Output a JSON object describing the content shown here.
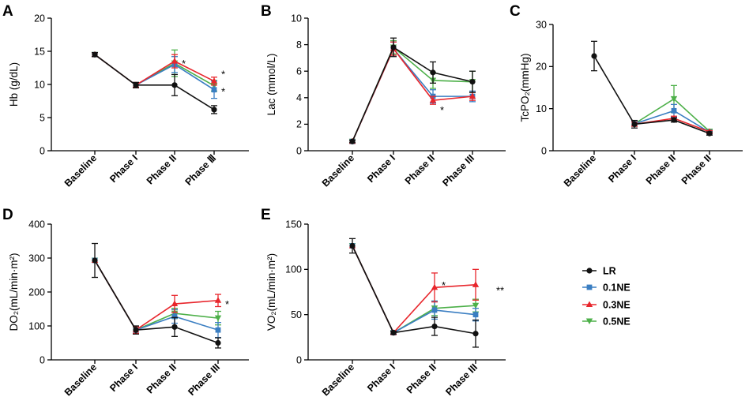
{
  "colors": {
    "LR": "#111111",
    "0.1NE": "#3a7ec2",
    "0.3NE": "#e8262c",
    "0.5NE": "#4db049"
  },
  "legend": {
    "entries": [
      {
        "label": "LR",
        "key": "LR",
        "marker": "circle"
      },
      {
        "label": "0.1NE",
        "key": "0.1NE",
        "marker": "square"
      },
      {
        "label": "0.3NE",
        "key": "0.3NE",
        "marker": "triangle-up"
      },
      {
        "label": "0.5NE",
        "key": "0.5NE",
        "marker": "triangle-down"
      }
    ]
  },
  "chart_data": [
    {
      "panel": "A",
      "type": "line",
      "ylabel": "Hb (g/dL)",
      "ylim": [
        0,
        20
      ],
      "yticks": [
        0,
        5,
        10,
        15,
        20
      ],
      "categories": [
        "Baseline",
        "Phase I",
        "Phase II",
        "Phase Ⅲ"
      ],
      "series": [
        {
          "name": "LR",
          "values": [
            14.5,
            9.9,
            9.9,
            6.2
          ],
          "errors": [
            0.3,
            0.4,
            1.6,
            0.6
          ]
        },
        {
          "name": "0.1NE",
          "values": [
            14.5,
            9.9,
            13.0,
            9.2
          ],
          "errors": [
            0.3,
            0.4,
            1.2,
            1.3
          ]
        },
        {
          "name": "0.3NE",
          "values": [
            14.5,
            9.9,
            13.5,
            10.5
          ],
          "errors": [
            0.3,
            0.4,
            1.0,
            0.6
          ]
        },
        {
          "name": "0.5NE",
          "values": [
            14.5,
            9.9,
            13.2,
            9.8
          ],
          "errors": [
            0.3,
            0.4,
            2.0,
            0.8
          ]
        }
      ],
      "annotations": [
        {
          "text": "*",
          "category": "Phase II",
          "y": 13.2
        },
        {
          "text": "*",
          "category": "Phase Ⅲ",
          "y": 11.6
        },
        {
          "text": "*",
          "category": "Phase Ⅲ",
          "y": 9.0
        }
      ]
    },
    {
      "panel": "B",
      "type": "line",
      "ylabel": "Lac (mmol/L)",
      "ylim": [
        0,
        10
      ],
      "yticks": [
        0,
        2,
        4,
        6,
        8,
        10
      ],
      "categories": [
        "Baseline",
        "Phase I",
        "Phase II",
        "Phase III"
      ],
      "series": [
        {
          "name": "LR",
          "values": [
            0.7,
            7.8,
            5.9,
            5.2
          ],
          "errors": [
            0.1,
            0.7,
            0.8,
            0.8
          ]
        },
        {
          "name": "0.1NE",
          "values": [
            0.7,
            7.7,
            4.1,
            4.1
          ],
          "errors": [
            0.1,
            0.5,
            0.5,
            0.4
          ]
        },
        {
          "name": "0.3NE",
          "values": [
            0.7,
            7.7,
            3.8,
            4.1
          ],
          "errors": [
            0.1,
            0.5,
            0.3,
            0.3
          ]
        },
        {
          "name": "0.5NE",
          "values": [
            0.7,
            7.8,
            5.3,
            5.2
          ],
          "errors": [
            0.1,
            0.5,
            0.6,
            0.8
          ]
        }
      ],
      "annotations": [
        {
          "text": "*",
          "category": "Phase II",
          "y": 3.1
        }
      ]
    },
    {
      "panel": "C",
      "type": "line",
      "ylabel": "TcPO₂(mmHg)",
      "ylim": [
        0,
        30
      ],
      "yticks": [
        0,
        10,
        20,
        30
      ],
      "categories": [
        "Baseline",
        "Phase I",
        "Phase II",
        "Phase II"
      ],
      "series": [
        {
          "name": "LR",
          "values": [
            22.5,
            6.3,
            7.3,
            4.1
          ],
          "errors": [
            3.5,
            0.9,
            0.5,
            0.4
          ]
        },
        {
          "name": "0.1NE",
          "values": [
            null,
            6.4,
            9.5,
            4.4
          ],
          "errors": [
            0,
            0.5,
            1.5,
            0.4
          ]
        },
        {
          "name": "0.3NE",
          "values": [
            null,
            6.3,
            7.7,
            4.5
          ],
          "errors": [
            0,
            0.5,
            0.5,
            0.3
          ]
        },
        {
          "name": "0.5NE",
          "values": [
            null,
            6.4,
            12.3,
            4.6
          ],
          "errors": [
            0,
            0.5,
            3.2,
            0.5
          ]
        }
      ],
      "annotations": []
    },
    {
      "panel": "D",
      "type": "line",
      "ylabel": "DO₂(mL/min·m²)",
      "ylim": [
        0,
        400
      ],
      "yticks": [
        0,
        100,
        200,
        300,
        400
      ],
      "categories": [
        "Baseline",
        "Phase I",
        "Phase II",
        "Phase III"
      ],
      "series": [
        {
          "name": "LR",
          "values": [
            293,
            88,
            97,
            50
          ],
          "errors": [
            50,
            12,
            28,
            15
          ]
        },
        {
          "name": "0.1NE",
          "values": [
            293,
            88,
            128,
            88
          ],
          "errors": [
            0,
            10,
            20,
            22
          ]
        },
        {
          "name": "0.3NE",
          "values": [
            293,
            88,
            165,
            175
          ],
          "errors": [
            0,
            10,
            25,
            18
          ]
        },
        {
          "name": "0.5NE",
          "values": [
            293,
            88,
            137,
            123
          ],
          "errors": [
            0,
            10,
            15,
            20
          ]
        }
      ],
      "annotations": [
        {
          "text": "*",
          "category": "Phase III",
          "y": 165
        }
      ]
    },
    {
      "panel": "E",
      "type": "line",
      "ylabel": "VO₂(mL/min·m²)",
      "ylim": [
        0,
        150
      ],
      "yticks": [
        0,
        50,
        100,
        150
      ],
      "categories": [
        "Baseline",
        "Phase I",
        "Phase II",
        "Phase III"
      ],
      "series": [
        {
          "name": "LR",
          "values": [
            126,
            30,
            37,
            29
          ],
          "errors": [
            8,
            1.5,
            10,
            15
          ]
        },
        {
          "name": "0.1NE",
          "values": [
            126,
            30,
            55,
            50
          ],
          "errors": [
            0,
            1.5,
            10,
            7
          ]
        },
        {
          "name": "0.3NE",
          "values": [
            126,
            30,
            80,
            83
          ],
          "errors": [
            0,
            1.5,
            16,
            17
          ]
        },
        {
          "name": "0.5NE",
          "values": [
            126,
            30,
            57,
            60
          ],
          "errors": [
            0,
            1.5,
            8,
            7
          ]
        }
      ],
      "annotations": [
        {
          "text": "*",
          "category": "Phase II",
          "y": 83
        },
        {
          "text": "**",
          "category": "Phase III",
          "y": 77
        }
      ]
    }
  ]
}
